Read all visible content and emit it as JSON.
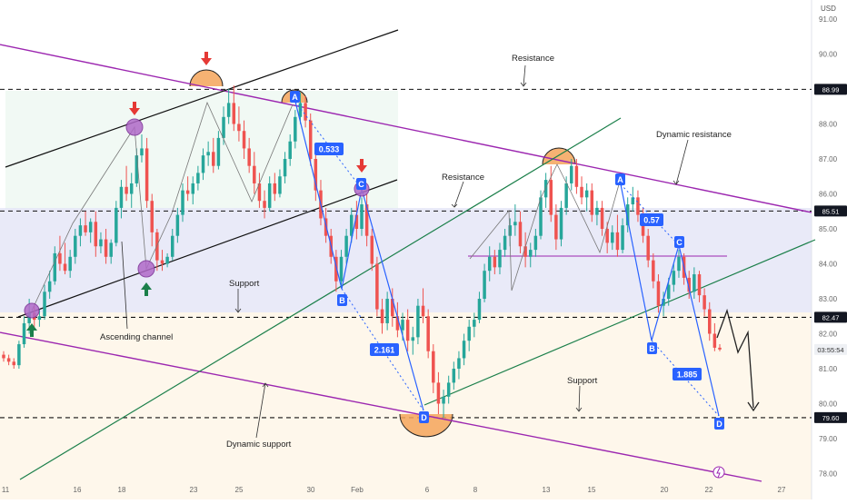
{
  "chart_data": {
    "type": "candlestick",
    "currency": "USD",
    "ylim": [
      77.5,
      91.5
    ],
    "y_ticks": [
      78.0,
      79.0,
      80.0,
      81.0,
      82.0,
      83.0,
      84.0,
      85.0,
      86.0,
      87.0,
      88.0,
      89.0,
      90.0,
      91.0
    ],
    "x_ticks": [
      "11",
      "16",
      "18",
      "23",
      "25",
      "30",
      "Feb",
      "6",
      "8",
      "13",
      "15",
      "20",
      "22",
      "27"
    ],
    "price_labels": [
      {
        "value": 88.99,
        "text": "88.99",
        "style": "black"
      },
      {
        "value": 85.51,
        "text": "85.51",
        "style": "black"
      },
      {
        "value": 82.47,
        "text": "82.47",
        "style": "black"
      },
      {
        "value": 81.55,
        "text": "03:55:54",
        "style": "countdown"
      },
      {
        "value": 79.6,
        "text": "79.60",
        "style": "black"
      }
    ],
    "horizontal_levels": [
      88.99,
      85.51,
      82.47,
      79.6
    ],
    "annotations": {
      "resistance_top": "Resistance",
      "resistance_mid": "Resistance",
      "dynamic_resistance": "Dynamic resistance",
      "support_left": "Support",
      "support_right": "Support",
      "ascending_channel": "Ascending channel",
      "dynamic_support": "Dynamic support"
    },
    "pattern_points": {
      "left": [
        "A",
        "B",
        "C",
        "D"
      ],
      "right": [
        "A",
        "B",
        "C",
        "D"
      ]
    },
    "ratios": {
      "left_bc": "0.533",
      "left_cd": "2.161",
      "right_bc": "0.57",
      "right_cd": "1.885"
    },
    "colors": {
      "up": "#26a69a",
      "down": "#ef5350",
      "pattern": "#2962ff",
      "dynamic_line": "#9c27b0",
      "trend_line": "#1b7f4a",
      "channel_line": "#111111"
    },
    "ohlc": [
      [
        81.4,
        81.5,
        81.2,
        81.3
      ],
      [
        81.3,
        81.4,
        81.1,
        81.2
      ],
      [
        81.2,
        81.3,
        81.0,
        81.1
      ],
      [
        81.1,
        81.8,
        81.0,
        81.7
      ],
      [
        81.7,
        82.5,
        81.6,
        82.3
      ],
      [
        82.3,
        83.0,
        82.0,
        82.6
      ],
      [
        82.6,
        82.8,
        82.2,
        82.4
      ],
      [
        82.4,
        82.7,
        82.2,
        82.5
      ],
      [
        82.5,
        83.4,
        82.4,
        83.2
      ],
      [
        83.2,
        83.8,
        83.0,
        83.5
      ],
      [
        83.5,
        84.5,
        83.4,
        84.3
      ],
      [
        84.3,
        84.8,
        83.8,
        84.0
      ],
      [
        84.0,
        84.6,
        83.7,
        83.8
      ],
      [
        83.8,
        84.4,
        83.6,
        84.2
      ],
      [
        84.2,
        85.0,
        84.0,
        84.8
      ],
      [
        84.8,
        85.3,
        84.5,
        85.1
      ],
      [
        85.1,
        85.5,
        84.8,
        84.9
      ],
      [
        84.9,
        85.3,
        84.6,
        85.2
      ],
      [
        85.2,
        85.5,
        84.2,
        84.5
      ],
      [
        84.5,
        84.9,
        84.3,
        84.7
      ],
      [
        84.7,
        85.0,
        84.0,
        84.2
      ],
      [
        84.2,
        84.7,
        84.0,
        84.6
      ],
      [
        84.6,
        85.8,
        84.5,
        85.6
      ],
      [
        85.6,
        86.4,
        85.3,
        86.2
      ],
      [
        86.2,
        86.8,
        85.8,
        86.0
      ],
      [
        86.0,
        86.6,
        85.6,
        86.3
      ],
      [
        86.3,
        87.3,
        86.2,
        87.1
      ],
      [
        87.1,
        87.7,
        86.9,
        87.3
      ],
      [
        87.3,
        87.6,
        85.6,
        85.8
      ],
      [
        85.8,
        86.0,
        84.5,
        84.9
      ],
      [
        84.9,
        85.0,
        83.8,
        84.1
      ],
      [
        84.1,
        84.4,
        83.8,
        84.0
      ],
      [
        84.0,
        84.3,
        83.9,
        84.2
      ],
      [
        84.2,
        85.0,
        84.1,
        84.8
      ],
      [
        84.8,
        85.6,
        84.6,
        85.4
      ],
      [
        85.4,
        86.3,
        85.2,
        86.1
      ],
      [
        86.1,
        86.5,
        85.8,
        86.0
      ],
      [
        86.0,
        86.5,
        85.7,
        86.3
      ],
      [
        86.3,
        86.8,
        86.1,
        86.6
      ],
      [
        86.6,
        87.3,
        86.4,
        87.1
      ],
      [
        87.1,
        87.5,
        86.8,
        87.2
      ],
      [
        87.2,
        87.6,
        86.6,
        86.8
      ],
      [
        86.8,
        87.8,
        86.7,
        87.6
      ],
      [
        87.6,
        88.5,
        87.4,
        88.2
      ],
      [
        88.2,
        89.0,
        88.0,
        88.6
      ],
      [
        88.6,
        89.1,
        87.8,
        88.0
      ],
      [
        88.0,
        88.5,
        87.5,
        87.8
      ],
      [
        87.8,
        88.1,
        87.0,
        87.3
      ],
      [
        87.3,
        87.6,
        86.6,
        86.8
      ],
      [
        86.8,
        87.2,
        86.0,
        86.3
      ],
      [
        86.3,
        86.6,
        85.6,
        85.8
      ],
      [
        85.8,
        86.1,
        85.3,
        85.6
      ],
      [
        85.6,
        86.5,
        85.5,
        86.3
      ],
      [
        86.3,
        86.6,
        85.8,
        86.0
      ],
      [
        86.0,
        86.7,
        85.9,
        86.5
      ],
      [
        86.5,
        87.2,
        86.3,
        87.0
      ],
      [
        87.0,
        87.7,
        86.8,
        87.5
      ],
      [
        87.5,
        88.4,
        87.3,
        88.2
      ],
      [
        88.2,
        88.9,
        88.0,
        88.6
      ],
      [
        88.6,
        88.8,
        87.9,
        88.1
      ],
      [
        88.1,
        88.3,
        86.8,
        87.0
      ],
      [
        87.0,
        87.2,
        85.8,
        86.1
      ],
      [
        86.1,
        86.4,
        85.1,
        85.3
      ],
      [
        85.3,
        85.6,
        84.6,
        84.8
      ],
      [
        84.8,
        85.0,
        84.0,
        84.2
      ],
      [
        84.2,
        84.4,
        83.2,
        83.5
      ],
      [
        83.5,
        84.4,
        83.3,
        84.2
      ],
      [
        84.2,
        85.0,
        84.0,
        84.8
      ],
      [
        84.8,
        85.6,
        84.6,
        85.4
      ],
      [
        85.4,
        85.8,
        84.7,
        85.0
      ],
      [
        85.0,
        85.9,
        84.8,
        85.7
      ],
      [
        85.7,
        86.0,
        84.5,
        84.8
      ],
      [
        84.8,
        85.0,
        83.8,
        84.0
      ],
      [
        84.0,
        84.2,
        82.5,
        82.7
      ],
      [
        82.7,
        83.0,
        82.0,
        82.3
      ],
      [
        82.3,
        83.2,
        82.1,
        83.0
      ],
      [
        83.0,
        83.3,
        82.2,
        82.5
      ],
      [
        82.5,
        82.9,
        81.9,
        82.1
      ],
      [
        82.1,
        82.6,
        81.8,
        82.4
      ],
      [
        82.4,
        82.7,
        81.5,
        81.8
      ],
      [
        81.8,
        82.2,
        81.4,
        81.9
      ],
      [
        81.9,
        83.0,
        81.7,
        82.8
      ],
      [
        82.8,
        83.3,
        82.3,
        82.5
      ],
      [
        82.5,
        82.7,
        81.3,
        81.5
      ],
      [
        81.5,
        81.7,
        80.3,
        80.6
      ],
      [
        80.6,
        80.9,
        79.7,
        80.0
      ],
      [
        80.0,
        80.4,
        79.6,
        80.2
      ],
      [
        80.2,
        80.8,
        80.0,
        80.6
      ],
      [
        80.6,
        81.2,
        80.4,
        81.0
      ],
      [
        81.0,
        81.5,
        80.7,
        81.3
      ],
      [
        81.3,
        82.0,
        81.1,
        81.8
      ],
      [
        81.8,
        82.4,
        81.5,
        82.2
      ],
      [
        82.2,
        82.6,
        81.9,
        82.4
      ],
      [
        82.4,
        83.2,
        82.3,
        83.0
      ],
      [
        83.0,
        84.0,
        82.9,
        83.8
      ],
      [
        83.8,
        84.5,
        83.5,
        84.2
      ],
      [
        84.2,
        84.4,
        83.7,
        83.9
      ],
      [
        83.9,
        84.6,
        83.7,
        84.4
      ],
      [
        84.4,
        85.0,
        84.2,
        84.8
      ],
      [
        84.8,
        85.3,
        84.5,
        85.1
      ],
      [
        85.1,
        85.7,
        84.8,
        85.2
      ],
      [
        85.2,
        85.5,
        84.3,
        84.5
      ],
      [
        84.5,
        84.9,
        83.9,
        84.2
      ],
      [
        84.2,
        84.6,
        83.9,
        84.4
      ],
      [
        84.4,
        85.0,
        84.2,
        84.8
      ],
      [
        84.8,
        86.1,
        84.7,
        85.9
      ],
      [
        85.9,
        86.6,
        85.6,
        86.4
      ],
      [
        86.4,
        86.8,
        85.2,
        85.4
      ],
      [
        85.4,
        85.7,
        84.4,
        84.7
      ],
      [
        84.7,
        85.8,
        84.5,
        85.6
      ],
      [
        85.6,
        86.5,
        85.4,
        86.3
      ],
      [
        86.3,
        87.0,
        86.1,
        86.8
      ],
      [
        86.8,
        87.0,
        86.0,
        86.2
      ],
      [
        86.2,
        86.5,
        85.7,
        85.9
      ],
      [
        85.9,
        86.3,
        85.5,
        86.1
      ],
      [
        86.1,
        86.3,
        85.2,
        85.4
      ],
      [
        85.4,
        85.8,
        85.1,
        85.6
      ],
      [
        85.6,
        85.8,
        84.8,
        85.0
      ],
      [
        85.0,
        85.2,
        84.3,
        84.6
      ],
      [
        84.6,
        85.1,
        84.4,
        84.9
      ],
      [
        84.9,
        85.4,
        84.2,
        84.4
      ],
      [
        84.4,
        85.3,
        84.3,
        85.1
      ],
      [
        85.1,
        85.9,
        84.9,
        85.7
      ],
      [
        85.7,
        86.2,
        85.5,
        85.9
      ],
      [
        85.9,
        86.1,
        85.2,
        85.4
      ],
      [
        85.4,
        85.6,
        84.6,
        84.8
      ],
      [
        84.8,
        85.0,
        83.9,
        84.1
      ],
      [
        84.1,
        84.3,
        83.3,
        83.5
      ],
      [
        83.5,
        83.7,
        82.6,
        82.8
      ],
      [
        82.8,
        83.2,
        82.5,
        83.0
      ],
      [
        83.0,
        83.6,
        82.8,
        83.4
      ],
      [
        83.4,
        84.0,
        83.2,
        83.8
      ],
      [
        83.8,
        84.4,
        83.6,
        84.2
      ],
      [
        84.2,
        84.3,
        83.4,
        83.6
      ],
      [
        83.6,
        83.8,
        83.0,
        83.2
      ],
      [
        83.2,
        83.9,
        83.0,
        83.7
      ],
      [
        83.7,
        83.8,
        82.9,
        83.1
      ],
      [
        83.1,
        83.3,
        82.5,
        82.7
      ],
      [
        82.7,
        82.9,
        81.8,
        82.0
      ],
      [
        82.0,
        82.3,
        81.5,
        81.6
      ],
      [
        81.6,
        81.7,
        81.5,
        81.55
      ]
    ]
  }
}
